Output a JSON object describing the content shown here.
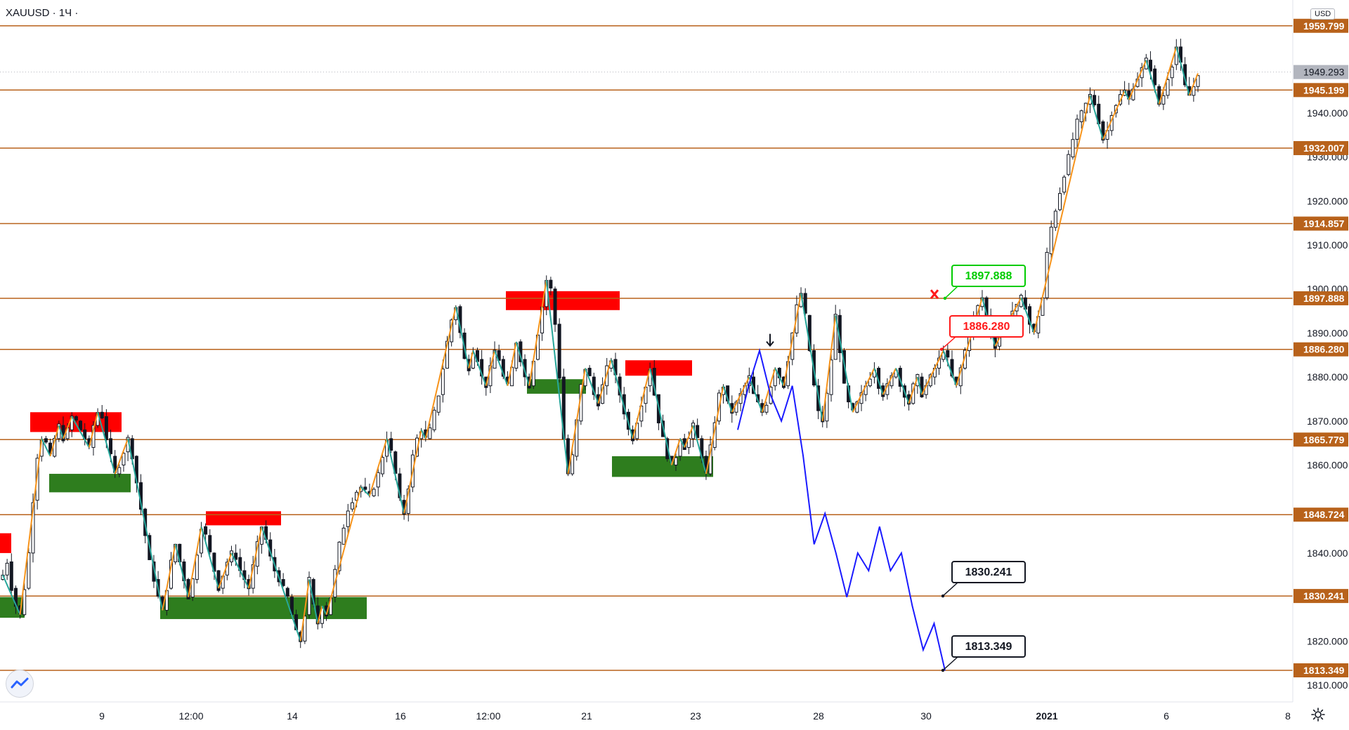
{
  "header": {
    "symbol": "XAUUSD · 1Ч ·"
  },
  "currency": "USD",
  "icons": {
    "logo": "tradingview-logo-icon",
    "settings": "gear-icon"
  },
  "colors": {
    "level_line": "#b8621b",
    "level_label_bg": "#b8621b",
    "current_price_bg": "#b2b5be",
    "zigzag_orange": "#f7931a",
    "zigzag_teal": "#26a69a",
    "supply_zone": "#ff0000",
    "demand_zone": "#2e7d1e",
    "projection": "#1a1aff",
    "candle": "#131722"
  },
  "chart_data": {
    "type": "candlestick",
    "symbol": "XAUUSD",
    "timeframe": "1Ч",
    "ylim": [
      1805,
      1966
    ],
    "y_ticks": [
      1810,
      1820,
      1830,
      1840,
      1850,
      1860,
      1870,
      1880,
      1890,
      1900,
      1910,
      1920,
      1930,
      1940
    ],
    "y_tick_labels": [
      "1810.000",
      "1820.000",
      "1830.000",
      "1840.000",
      "",
      "1860.000",
      "1870.000",
      "1880.000",
      "1890.000",
      "1900.000",
      "1910.000",
      "1920.000",
      "1930.000",
      "1940.000"
    ],
    "x_labels": [
      "9",
      "12:00",
      "14",
      "16",
      "12:00",
      "21",
      "23",
      "28",
      "30",
      "2021",
      "6",
      "8"
    ],
    "current_price": {
      "value": 1949.293,
      "label": "1949.293"
    },
    "levels": [
      {
        "value": 1959.799,
        "label": "1959.799"
      },
      {
        "value": 1945.199,
        "label": "1945.199"
      },
      {
        "value": 1932.007,
        "label": "1932.007"
      },
      {
        "value": 1914.857,
        "label": "1914.857"
      },
      {
        "value": 1897.888,
        "label": "1897.888"
      },
      {
        "value": 1886.28,
        "label": "1886.280"
      },
      {
        "value": 1865.779,
        "label": "1865.779"
      },
      {
        "value": 1848.724,
        "label": "1848.724"
      },
      {
        "value": 1830.241,
        "label": "1830.241"
      },
      {
        "value": 1813.349,
        "label": "1813.349"
      }
    ],
    "supply_zones": [
      {
        "y_top": 1844.5,
        "y_bottom": 1840.0
      },
      {
        "y_top": 1872.0,
        "y_bottom": 1867.5
      },
      {
        "y_top": 1849.5,
        "y_bottom": 1846.3
      },
      {
        "y_top": 1899.5,
        "y_bottom": 1895.2
      },
      {
        "y_top": 1883.8,
        "y_bottom": 1880.3
      }
    ],
    "demand_zones": [
      {
        "y_top": 1830.0,
        "y_bottom": 1825.3
      },
      {
        "y_top": 1858.0,
        "y_bottom": 1853.8
      },
      {
        "y_top": 1830.0,
        "y_bottom": 1825.0
      },
      {
        "y_top": 1879.5,
        "y_bottom": 1876.2
      },
      {
        "y_top": 1862.0,
        "y_bottom": 1857.3
      }
    ],
    "callouts": [
      {
        "label": "1897.888",
        "color": "#00cc00",
        "value": 1897.888
      },
      {
        "label": "1886.280",
        "color": "#ff1a1a",
        "value": 1886.28
      },
      {
        "label": "1830.241",
        "color": "#131722",
        "value": 1830.241
      },
      {
        "label": "1813.349",
        "color": "#131722",
        "value": 1813.349
      }
    ],
    "price_path": [
      1835,
      1838,
      1832,
      1828,
      1826,
      1832,
      1840,
      1852,
      1862,
      1866,
      1865,
      1862,
      1866,
      1869,
      1866,
      1868,
      1871,
      1870,
      1868,
      1866,
      1864,
      1869,
      1872,
      1871,
      1866,
      1862,
      1858,
      1860,
      1863,
      1866,
      1862,
      1856,
      1850,
      1844,
      1838,
      1834,
      1830,
      1827,
      1832,
      1838,
      1842,
      1838,
      1834,
      1830,
      1834,
      1840,
      1846,
      1844,
      1840,
      1836,
      1832,
      1835,
      1838,
      1840,
      1839,
      1836,
      1834,
      1832,
      1837,
      1842,
      1846,
      1843,
      1839,
      1836,
      1834,
      1832,
      1830,
      1826,
      1822,
      1820,
      1826,
      1834,
      1828,
      1824,
      1828,
      1826,
      1830,
      1836,
      1842,
      1846,
      1850,
      1852,
      1854,
      1855,
      1854,
      1853,
      1855,
      1858,
      1862,
      1866,
      1863,
      1858,
      1852,
      1849,
      1855,
      1862,
      1866,
      1868,
      1866,
      1868,
      1872,
      1876,
      1882,
      1888,
      1893,
      1896,
      1890,
      1884,
      1882,
      1886,
      1884,
      1880,
      1878,
      1882,
      1886,
      1884,
      1880,
      1878,
      1882,
      1888,
      1884,
      1880,
      1878,
      1884,
      1890,
      1896,
      1902,
      1900,
      1892,
      1880,
      1866,
      1858,
      1862,
      1870,
      1878,
      1882,
      1880,
      1876,
      1874,
      1878,
      1882,
      1884,
      1880,
      1876,
      1872,
      1868,
      1866,
      1870,
      1874,
      1878,
      1882,
      1876,
      1870,
      1866,
      1862,
      1860,
      1862,
      1866,
      1864,
      1866,
      1869,
      1866,
      1862,
      1858,
      1864,
      1870,
      1876,
      1878,
      1874,
      1872,
      1874,
      1876,
      1878,
      1880,
      1876,
      1874,
      1872,
      1874,
      1878,
      1882,
      1880,
      1878,
      1884,
      1890,
      1896,
      1899,
      1894,
      1886,
      1878,
      1872,
      1870,
      1876,
      1884,
      1894,
      1886,
      1878,
      1874,
      1872,
      1874,
      1876,
      1878,
      1880,
      1882,
      1878,
      1876,
      1878,
      1880,
      1882,
      1878,
      1876,
      1874,
      1878,
      1880,
      1876,
      1878,
      1880,
      1882,
      1884,
      1886,
      1884,
      1880,
      1878,
      1882,
      1886,
      1890,
      1893,
      1896,
      1898,
      1894,
      1890,
      1887,
      1890,
      1892,
      1893,
      1895,
      1896,
      1898,
      1896,
      1892,
      1890,
      1894,
      1898,
      1908,
      1914,
      1918,
      1922,
      1926,
      1930,
      1934,
      1938,
      1940,
      1942,
      1944,
      1942,
      1938,
      1934,
      1936,
      1940,
      1942,
      1944,
      1945,
      1943,
      1946,
      1948,
      1950,
      1952,
      1950,
      1946,
      1942,
      1944,
      1948,
      1951,
      1955,
      1951,
      1946,
      1944,
      1946,
      1949
    ]
  }
}
